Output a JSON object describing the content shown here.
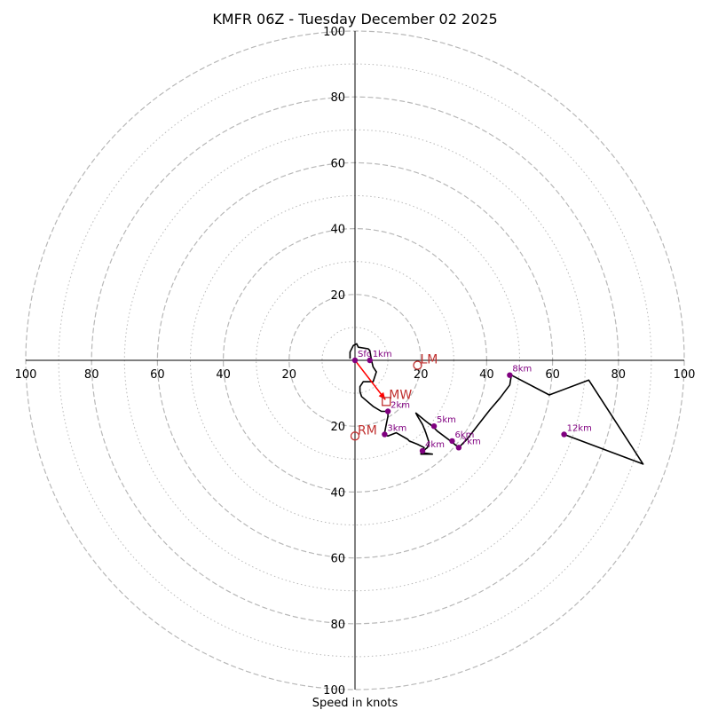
{
  "chart_data": {
    "type": "hodograph",
    "title": "KMFR 06Z - Tuesday December 02 2025",
    "xlabel": "Speed in knots",
    "range": [
      -100,
      100
    ],
    "ring_major": [
      20,
      40,
      60,
      80,
      100
    ],
    "ring_minor": [
      10,
      30,
      50,
      70,
      90
    ],
    "x_tick_labels": [
      "100",
      "80",
      "60",
      "40",
      "20",
      "20",
      "40",
      "60",
      "80",
      "100"
    ],
    "x_tick_values": [
      -100,
      -80,
      -60,
      -40,
      -20,
      20,
      40,
      60,
      80,
      100
    ],
    "y_tick_labels": [
      "100",
      "80",
      "60",
      "40",
      "20",
      "20",
      "40",
      "60",
      "80",
      "100"
    ],
    "y_tick_values": [
      100,
      80,
      60,
      40,
      20,
      -20,
      -40,
      -60,
      -80,
      -100
    ],
    "trace": [
      [
        -1.5,
        0.5
      ],
      [
        -1.5,
        2.5
      ],
      [
        -0.5,
        4.5
      ],
      [
        0.5,
        5
      ],
      [
        1,
        4
      ],
      [
        4,
        3.5
      ],
      [
        4.5,
        3
      ],
      [
        5,
        0
      ],
      [
        5.5,
        -2
      ],
      [
        6.5,
        -3.5
      ],
      [
        5.5,
        -6.5
      ],
      [
        2.5,
        -6.5
      ],
      [
        1.5,
        -8
      ],
      [
        1.5,
        -9.5
      ],
      [
        2,
        -11
      ],
      [
        5.5,
        -14
      ],
      [
        8,
        -15.5
      ],
      [
        10,
        -15.5
      ],
      [
        10,
        -17
      ],
      [
        9.5,
        -19.5
      ],
      [
        9,
        -22
      ],
      [
        9,
        -22.5
      ],
      [
        10,
        -23
      ],
      [
        12.5,
        -22
      ],
      [
        16,
        -24
      ],
      [
        16.5,
        -24.5
      ],
      [
        19,
        -25.5
      ],
      [
        21,
        -26.5
      ],
      [
        20.5,
        -27.5
      ],
      [
        20,
        -28.5
      ],
      [
        23.5,
        -28.5
      ],
      [
        20,
        -28
      ],
      [
        22,
        -26.5
      ],
      [
        22.5,
        -25
      ],
      [
        21.5,
        -22
      ],
      [
        20.5,
        -19.5
      ],
      [
        19,
        -17
      ],
      [
        18.5,
        -16
      ],
      [
        21.5,
        -18.5
      ],
      [
        23.5,
        -20
      ],
      [
        25,
        -21.5
      ],
      [
        29,
        -24.5
      ],
      [
        31.5,
        -26.5
      ],
      [
        34,
        -24
      ],
      [
        37.5,
        -19.5
      ],
      [
        41,
        -15
      ],
      [
        44,
        -11.5
      ],
      [
        47,
        -7.5
      ],
      [
        47.5,
        -4.5
      ],
      [
        59,
        -10.5
      ],
      [
        71,
        -6
      ],
      [
        87.5,
        -31.5
      ],
      [
        63.5,
        -22.5
      ]
    ],
    "heights": [
      {
        "label": "Sfc",
        "u": 0,
        "v": 0
      },
      {
        "label": "1km",
        "u": 4.5,
        "v": 0
      },
      {
        "label": "2km",
        "u": 10,
        "v": -15.5
      },
      {
        "label": "3km",
        "u": 9,
        "v": -22.5
      },
      {
        "label": "4km",
        "u": 20.5,
        "v": -27.5
      },
      {
        "label": "5km",
        "u": 24,
        "v": -20
      },
      {
        "label": "6km",
        "u": 29.5,
        "v": -24.5
      },
      {
        "label": "7km",
        "u": 31.5,
        "v": -26.5
      },
      {
        "label": "8km",
        "u": 47,
        "v": -4.5
      },
      {
        "label": "12km",
        "u": 63.5,
        "v": -22.5
      }
    ],
    "mean_wind": {
      "label": "MW",
      "u": 9.5,
      "v": -12.5
    },
    "left_mover": {
      "label": "LM",
      "u": 19,
      "v": -1.5
    },
    "right_mover": {
      "label": "RM",
      "u": 0,
      "v": -23
    },
    "colors": {
      "trace": "#000000",
      "height_marker": "#800080",
      "storm_motion": "#c0302f",
      "mean_wind_arrow": "#ff0000",
      "grid": "#b8b8b8"
    }
  }
}
